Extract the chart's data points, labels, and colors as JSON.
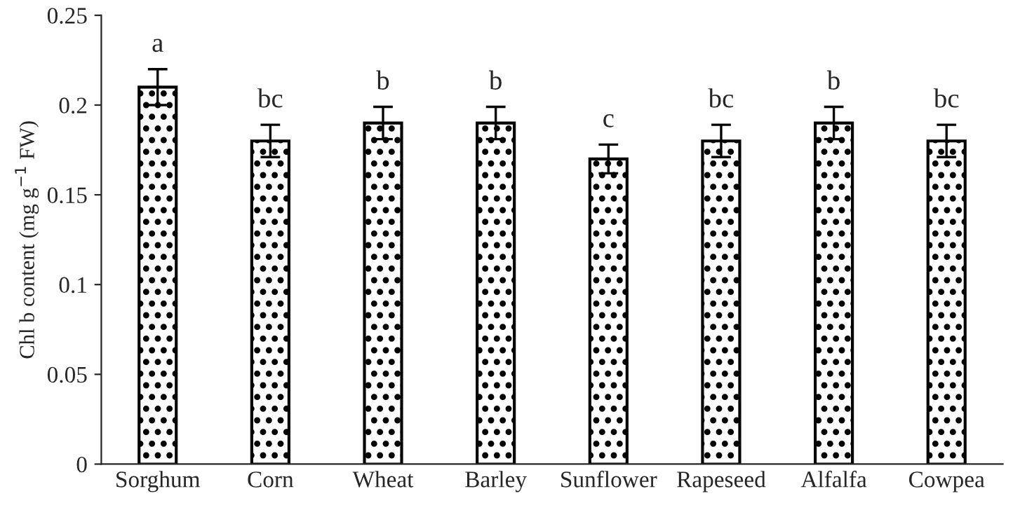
{
  "chart_data": {
    "type": "bar",
    "ylabel": "Chl b content (mg g$^{−1}$ FW)",
    "categories": [
      "Sorghum",
      "Corn",
      "Wheat",
      "Barley",
      "Sunflower",
      "Rapeseed",
      "Alfalfa",
      "Cowpea"
    ],
    "values": [
      0.21,
      0.18,
      0.19,
      0.19,
      0.17,
      0.18,
      0.19,
      0.18
    ],
    "errors": [
      0.01,
      0.009,
      0.009,
      0.009,
      0.008,
      0.009,
      0.009,
      0.009
    ],
    "color": "#000000",
    "ylim": [
      0,
      0.25
    ],
    "yticks": [
      0,
      0.05,
      0.1,
      0.15,
      0.2,
      0.25
    ],
    "grid": false,
    "legend": false,
    "annotations": [
      {
        "text": "a",
        "x": "Sorghum",
        "y": 0.22
      },
      {
        "text": "bc",
        "x": "Corn",
        "y": 0.189
      },
      {
        "text": "b",
        "x": "Wheat",
        "y": 0.199
      },
      {
        "text": "b",
        "x": "Barley",
        "y": 0.199
      },
      {
        "text": "c",
        "x": "Sunflower",
        "y": 0.178
      },
      {
        "text": "bc",
        "x": "Rapeseed",
        "y": 0.189
      },
      {
        "text": "b",
        "x": "Alfalfa",
        "y": 0.199
      },
      {
        "text": "bc",
        "x": "Cowpea",
        "y": 0.189
      }
    ]
  }
}
